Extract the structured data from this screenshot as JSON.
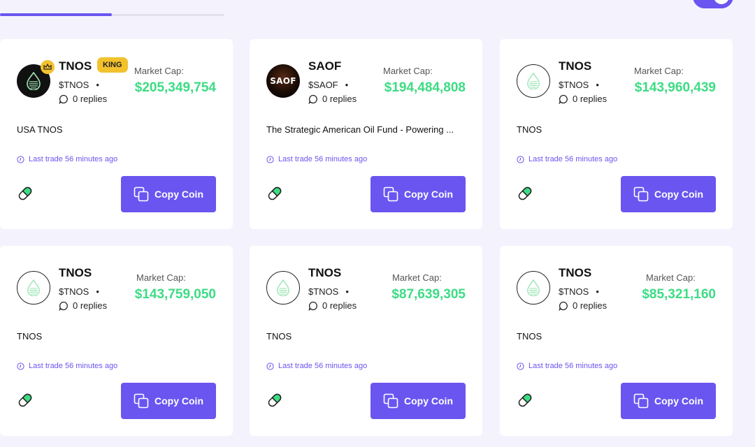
{
  "colors": {
    "accent": "#6a55f0",
    "market_cap": "#3ddc84",
    "king_badge": "#f2c12e",
    "background": "#f4f2fd"
  },
  "cards": [
    {
      "name": "TNOS",
      "badge": "KING",
      "ticker": "$TNOS",
      "replies": "0 replies",
      "market_cap_label": "Market Cap:",
      "market_cap": "$205,349,754",
      "description": "USA TNOS",
      "last_trade": "Last trade 56 minutes ago",
      "copy_label": "Copy Coin",
      "avatar": "dark-drop"
    },
    {
      "name": "SAOF",
      "ticker": "$SAOF",
      "replies": "0 replies",
      "market_cap_label": "Market Cap:",
      "market_cap": "$194,484,808",
      "description": "The Strategic American Oil Fund - Powering ...",
      "last_trade": "Last trade 56 minutes ago",
      "copy_label": "Copy Coin",
      "avatar": "saof",
      "avatar_text": "SAOF"
    },
    {
      "name": "TNOS",
      "ticker": "$TNOS",
      "replies": "0 replies",
      "market_cap_label": "Market Cap:",
      "market_cap": "$143,960,439",
      "description": "TNOS",
      "last_trade": "Last trade 56 minutes ago",
      "copy_label": "Copy Coin",
      "avatar": "light-drop"
    },
    {
      "name": "TNOS",
      "ticker": "$TNOS",
      "replies": "0 replies",
      "market_cap_label": "Market Cap:",
      "market_cap": "$143,759,050",
      "description": "TNOS",
      "last_trade": "Last trade 56 minutes ago",
      "copy_label": "Copy Coin",
      "avatar": "light-drop"
    },
    {
      "name": "TNOS",
      "ticker": "$TNOS",
      "replies": "0 replies",
      "market_cap_label": "Market Cap:",
      "market_cap": "$87,639,305",
      "description": "TNOS",
      "last_trade": "Last trade 56 minutes ago",
      "copy_label": "Copy Coin",
      "avatar": "light-drop"
    },
    {
      "name": "TNOS",
      "ticker": "$TNOS",
      "replies": "0 replies",
      "market_cap_label": "Market Cap:",
      "market_cap": "$85,321,160",
      "description": "TNOS",
      "last_trade": "Last trade 56 minutes ago",
      "copy_label": "Copy Coin",
      "avatar": "light-drop"
    }
  ]
}
